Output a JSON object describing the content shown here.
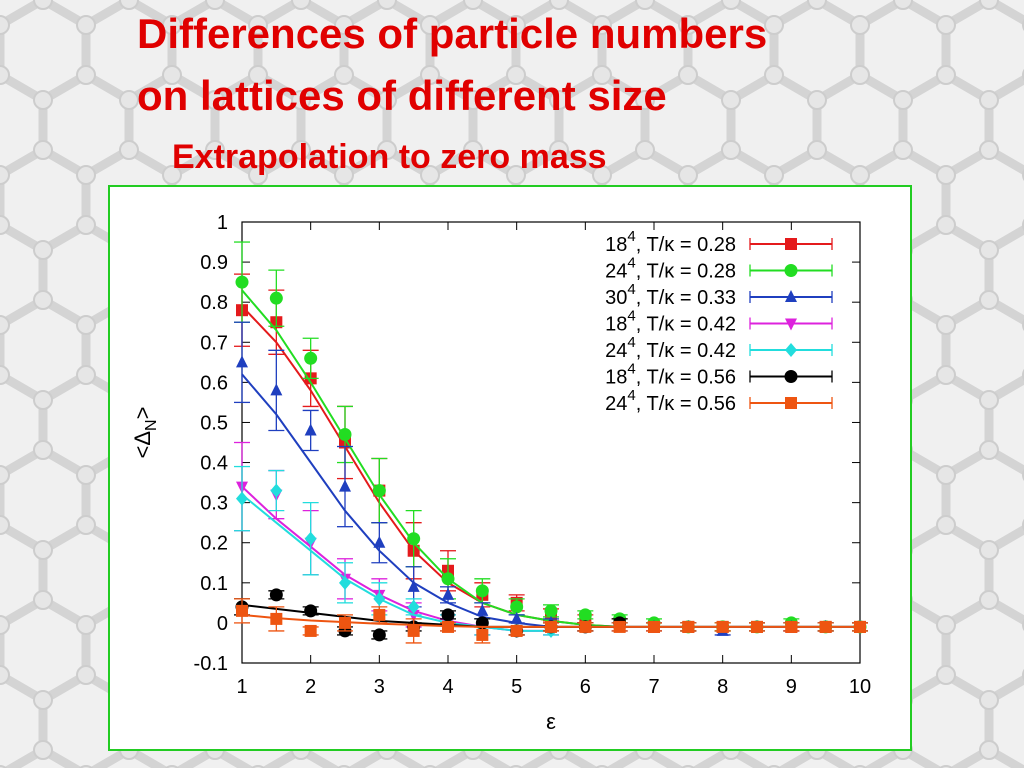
{
  "slide": {
    "title_line1": "Differences of particle numbers",
    "title_line2": "on lattices of different size",
    "subtitle": "Extrapolation to zero mass"
  },
  "colors": {
    "title": "#e00000",
    "frame": "#22cc22"
  },
  "chart_data": {
    "type": "scatter",
    "xlabel": "ε",
    "ylabel": "<ΔN>",
    "ylabel_main": "<Δ",
    "ylabel_sub": "N",
    "ylabel_end": ">",
    "xlim": [
      1,
      10
    ],
    "ylim": [
      -0.1,
      1
    ],
    "xticks": [
      "1",
      "2",
      "3",
      "4",
      "5",
      "6",
      "7",
      "8",
      "9",
      "10"
    ],
    "yticks": [
      "-0.1",
      "0",
      "0.1",
      "0.2",
      "0.3",
      "0.4",
      "0.5",
      "0.6",
      "0.7",
      "0.8",
      "0.9",
      "1"
    ],
    "legend_position": "top-right",
    "series": [
      {
        "name": "18⁴, T/κ = 0.28",
        "lattice": "18",
        "exp": "4",
        "ratio": "T/κ = 0.28",
        "color": "#e41a1c",
        "marker": "square",
        "x": [
          1,
          1.5,
          2,
          2.5,
          3,
          3.5,
          4,
          4.5,
          5,
          5.5,
          6,
          6.5,
          7,
          7.5,
          8,
          8.5,
          9,
          9.5,
          10
        ],
        "y": [
          0.78,
          0.75,
          0.61,
          0.45,
          0.33,
          0.18,
          0.13,
          0.07,
          0.05,
          0.02,
          0.01,
          0.0,
          -0.01,
          -0.01,
          -0.01,
          -0.01,
          -0.01,
          -0.01,
          -0.01
        ],
        "err": [
          0.09,
          0.08,
          0.07,
          0.09,
          0.08,
          0.07,
          0.05,
          0.03,
          0.02,
          0.015,
          0.01,
          0.01,
          0.01,
          0.01,
          0.01,
          0.01,
          0.01,
          0.01,
          0.01
        ],
        "fit": [
          0.79,
          0.7,
          0.58,
          0.44,
          0.3,
          0.18,
          0.1,
          0.05,
          0.02,
          0.005,
          -0.005,
          -0.01,
          -0.01,
          -0.01,
          -0.01,
          -0.01,
          -0.01,
          -0.01,
          -0.01
        ]
      },
      {
        "name": "24⁴, T/κ = 0.28",
        "lattice": "24",
        "exp": "4",
        "ratio": "T/κ = 0.28",
        "color": "#22dd22",
        "marker": "circle",
        "x": [
          1,
          1.5,
          2,
          2.5,
          3,
          3.5,
          4,
          4.5,
          5,
          5.5,
          6,
          6.5,
          7,
          7.5,
          8,
          8.5,
          9,
          9.5,
          10
        ],
        "y": [
          0.85,
          0.81,
          0.66,
          0.47,
          0.33,
          0.21,
          0.11,
          0.08,
          0.04,
          0.03,
          0.02,
          0.01,
          0.0,
          -0.01,
          -0.01,
          -0.01,
          0.0,
          -0.01,
          -0.01
        ],
        "err": [
          0.1,
          0.07,
          0.05,
          0.07,
          0.08,
          0.07,
          0.05,
          0.03,
          0.02,
          0.015,
          0.01,
          0.01,
          0.01,
          0.01,
          0.01,
          0.01,
          0.01,
          0.01,
          0.01
        ],
        "fit": [
          0.83,
          0.73,
          0.6,
          0.46,
          0.32,
          0.2,
          0.11,
          0.05,
          0.02,
          0.005,
          -0.005,
          -0.01,
          -0.01,
          -0.01,
          -0.01,
          -0.01,
          -0.01,
          -0.01,
          -0.01
        ]
      },
      {
        "name": "30⁴, T/κ = 0.33",
        "lattice": "30",
        "exp": "4",
        "ratio": "T/κ = 0.33",
        "color": "#1f3fbf",
        "marker": "triangle-up",
        "x": [
          1,
          1.5,
          2,
          2.5,
          3,
          3.5,
          4,
          4.5,
          5,
          5.5,
          6,
          6.5,
          7,
          7.5,
          8,
          8.5,
          9,
          9.5,
          10
        ],
        "y": [
          0.65,
          0.58,
          0.48,
          0.34,
          0.2,
          0.09,
          0.07,
          0.03,
          0.01,
          0.0,
          -0.01,
          -0.01,
          -0.01,
          -0.01,
          -0.02,
          -0.01,
          -0.01,
          -0.01,
          -0.01
        ],
        "err": [
          0.1,
          0.1,
          0.05,
          0.1,
          0.05,
          0.05,
          0.02,
          0.02,
          0.01,
          0.01,
          0.01,
          0.01,
          0.01,
          0.01,
          0.01,
          0.01,
          0.01,
          0.01,
          0.01
        ],
        "fit": [
          0.62,
          0.52,
          0.4,
          0.28,
          0.18,
          0.1,
          0.05,
          0.015,
          0.0,
          -0.01,
          -0.01,
          -0.01,
          -0.01,
          -0.01,
          -0.01,
          -0.01,
          -0.01,
          -0.01,
          -0.01
        ]
      },
      {
        "name": "18⁴, T/κ = 0.42",
        "lattice": "18",
        "exp": "4",
        "ratio": "T/κ = 0.42",
        "color": "#dd22dd",
        "marker": "triangle-down",
        "x": [
          1,
          1.5,
          2,
          2.5,
          3,
          3.5,
          4,
          4.5,
          5,
          5.5
        ],
        "y": [
          0.34,
          0.32,
          0.2,
          0.11,
          0.07,
          0.02,
          0.0,
          -0.01,
          -0.02,
          -0.02
        ],
        "err": [
          0.11,
          0.06,
          0.08,
          0.05,
          0.04,
          0.03,
          0.02,
          0.02,
          0.01,
          0.01
        ],
        "fit": [
          0.34,
          0.26,
          0.19,
          0.12,
          0.07,
          0.03,
          0.005,
          -0.01,
          -0.02,
          -0.02
        ]
      },
      {
        "name": "24⁴, T/κ = 0.42",
        "lattice": "24",
        "exp": "4",
        "ratio": "T/κ = 0.42",
        "color": "#22dddd",
        "marker": "diamond",
        "x": [
          1,
          1.5,
          2,
          2.5,
          3,
          3.5,
          4,
          4.5,
          5,
          5.5
        ],
        "y": [
          0.31,
          0.33,
          0.21,
          0.1,
          0.06,
          0.04,
          0.0,
          -0.01,
          -0.02,
          -0.02
        ],
        "err": [
          0.08,
          0.05,
          0.09,
          0.05,
          0.04,
          0.02,
          0.02,
          0.02,
          0.01,
          0.01
        ],
        "fit": [
          0.32,
          0.25,
          0.18,
          0.11,
          0.06,
          0.02,
          0.0,
          -0.01,
          -0.02,
          -0.02
        ]
      },
      {
        "name": "18⁴, T/κ = 0.56",
        "lattice": "18",
        "exp": "4",
        "ratio": "T/κ = 0.56",
        "color": "#000000",
        "marker": "circle",
        "x": [
          1,
          1.5,
          2,
          2.5,
          3,
          3.5,
          4,
          4.5,
          5,
          5.5,
          6,
          6.5
        ],
        "y": [
          0.04,
          0.07,
          0.03,
          -0.02,
          -0.03,
          -0.01,
          0.02,
          0.0,
          -0.02,
          -0.01,
          -0.01,
          0.0
        ],
        "err": [
          0.02,
          0.01,
          0.01,
          0.01,
          0.01,
          0.01,
          0.01,
          0.01,
          0.01,
          0.01,
          0.01,
          0.01
        ],
        "fit": [
          0.045,
          0.035,
          0.025,
          0.015,
          0.005,
          0.0,
          -0.005,
          -0.01,
          -0.01,
          -0.01,
          -0.01,
          -0.01
        ]
      },
      {
        "name": "24⁴, T/κ = 0.56",
        "lattice": "24",
        "exp": "4",
        "ratio": "T/κ = 0.56",
        "color": "#ee5511",
        "marker": "square",
        "x": [
          1,
          1.5,
          2,
          2.5,
          3,
          3.5,
          4,
          4.5,
          5,
          5.5,
          6,
          6.5,
          7,
          7.5,
          8,
          8.5,
          9,
          9.5,
          10
        ],
        "y": [
          0.03,
          0.01,
          -0.02,
          0.0,
          0.02,
          -0.02,
          -0.01,
          -0.03,
          -0.02,
          -0.01,
          -0.01,
          -0.01,
          -0.01,
          -0.01,
          -0.01,
          -0.01,
          -0.01,
          -0.01,
          -0.01
        ],
        "err": [
          0.03,
          0.03,
          0.01,
          0.02,
          0.02,
          0.03,
          0.01,
          0.02,
          0.01,
          0.01,
          0.01,
          0.01,
          0.01,
          0.01,
          0.01,
          0.01,
          0.01,
          0.01,
          0.01
        ],
        "fit": [
          0.02,
          0.012,
          0.006,
          0.002,
          -0.002,
          -0.005,
          -0.008,
          -0.01,
          -0.01,
          -0.01,
          -0.01,
          -0.01,
          -0.01,
          -0.01,
          -0.01,
          -0.01,
          -0.01,
          -0.01,
          -0.01
        ]
      }
    ]
  }
}
